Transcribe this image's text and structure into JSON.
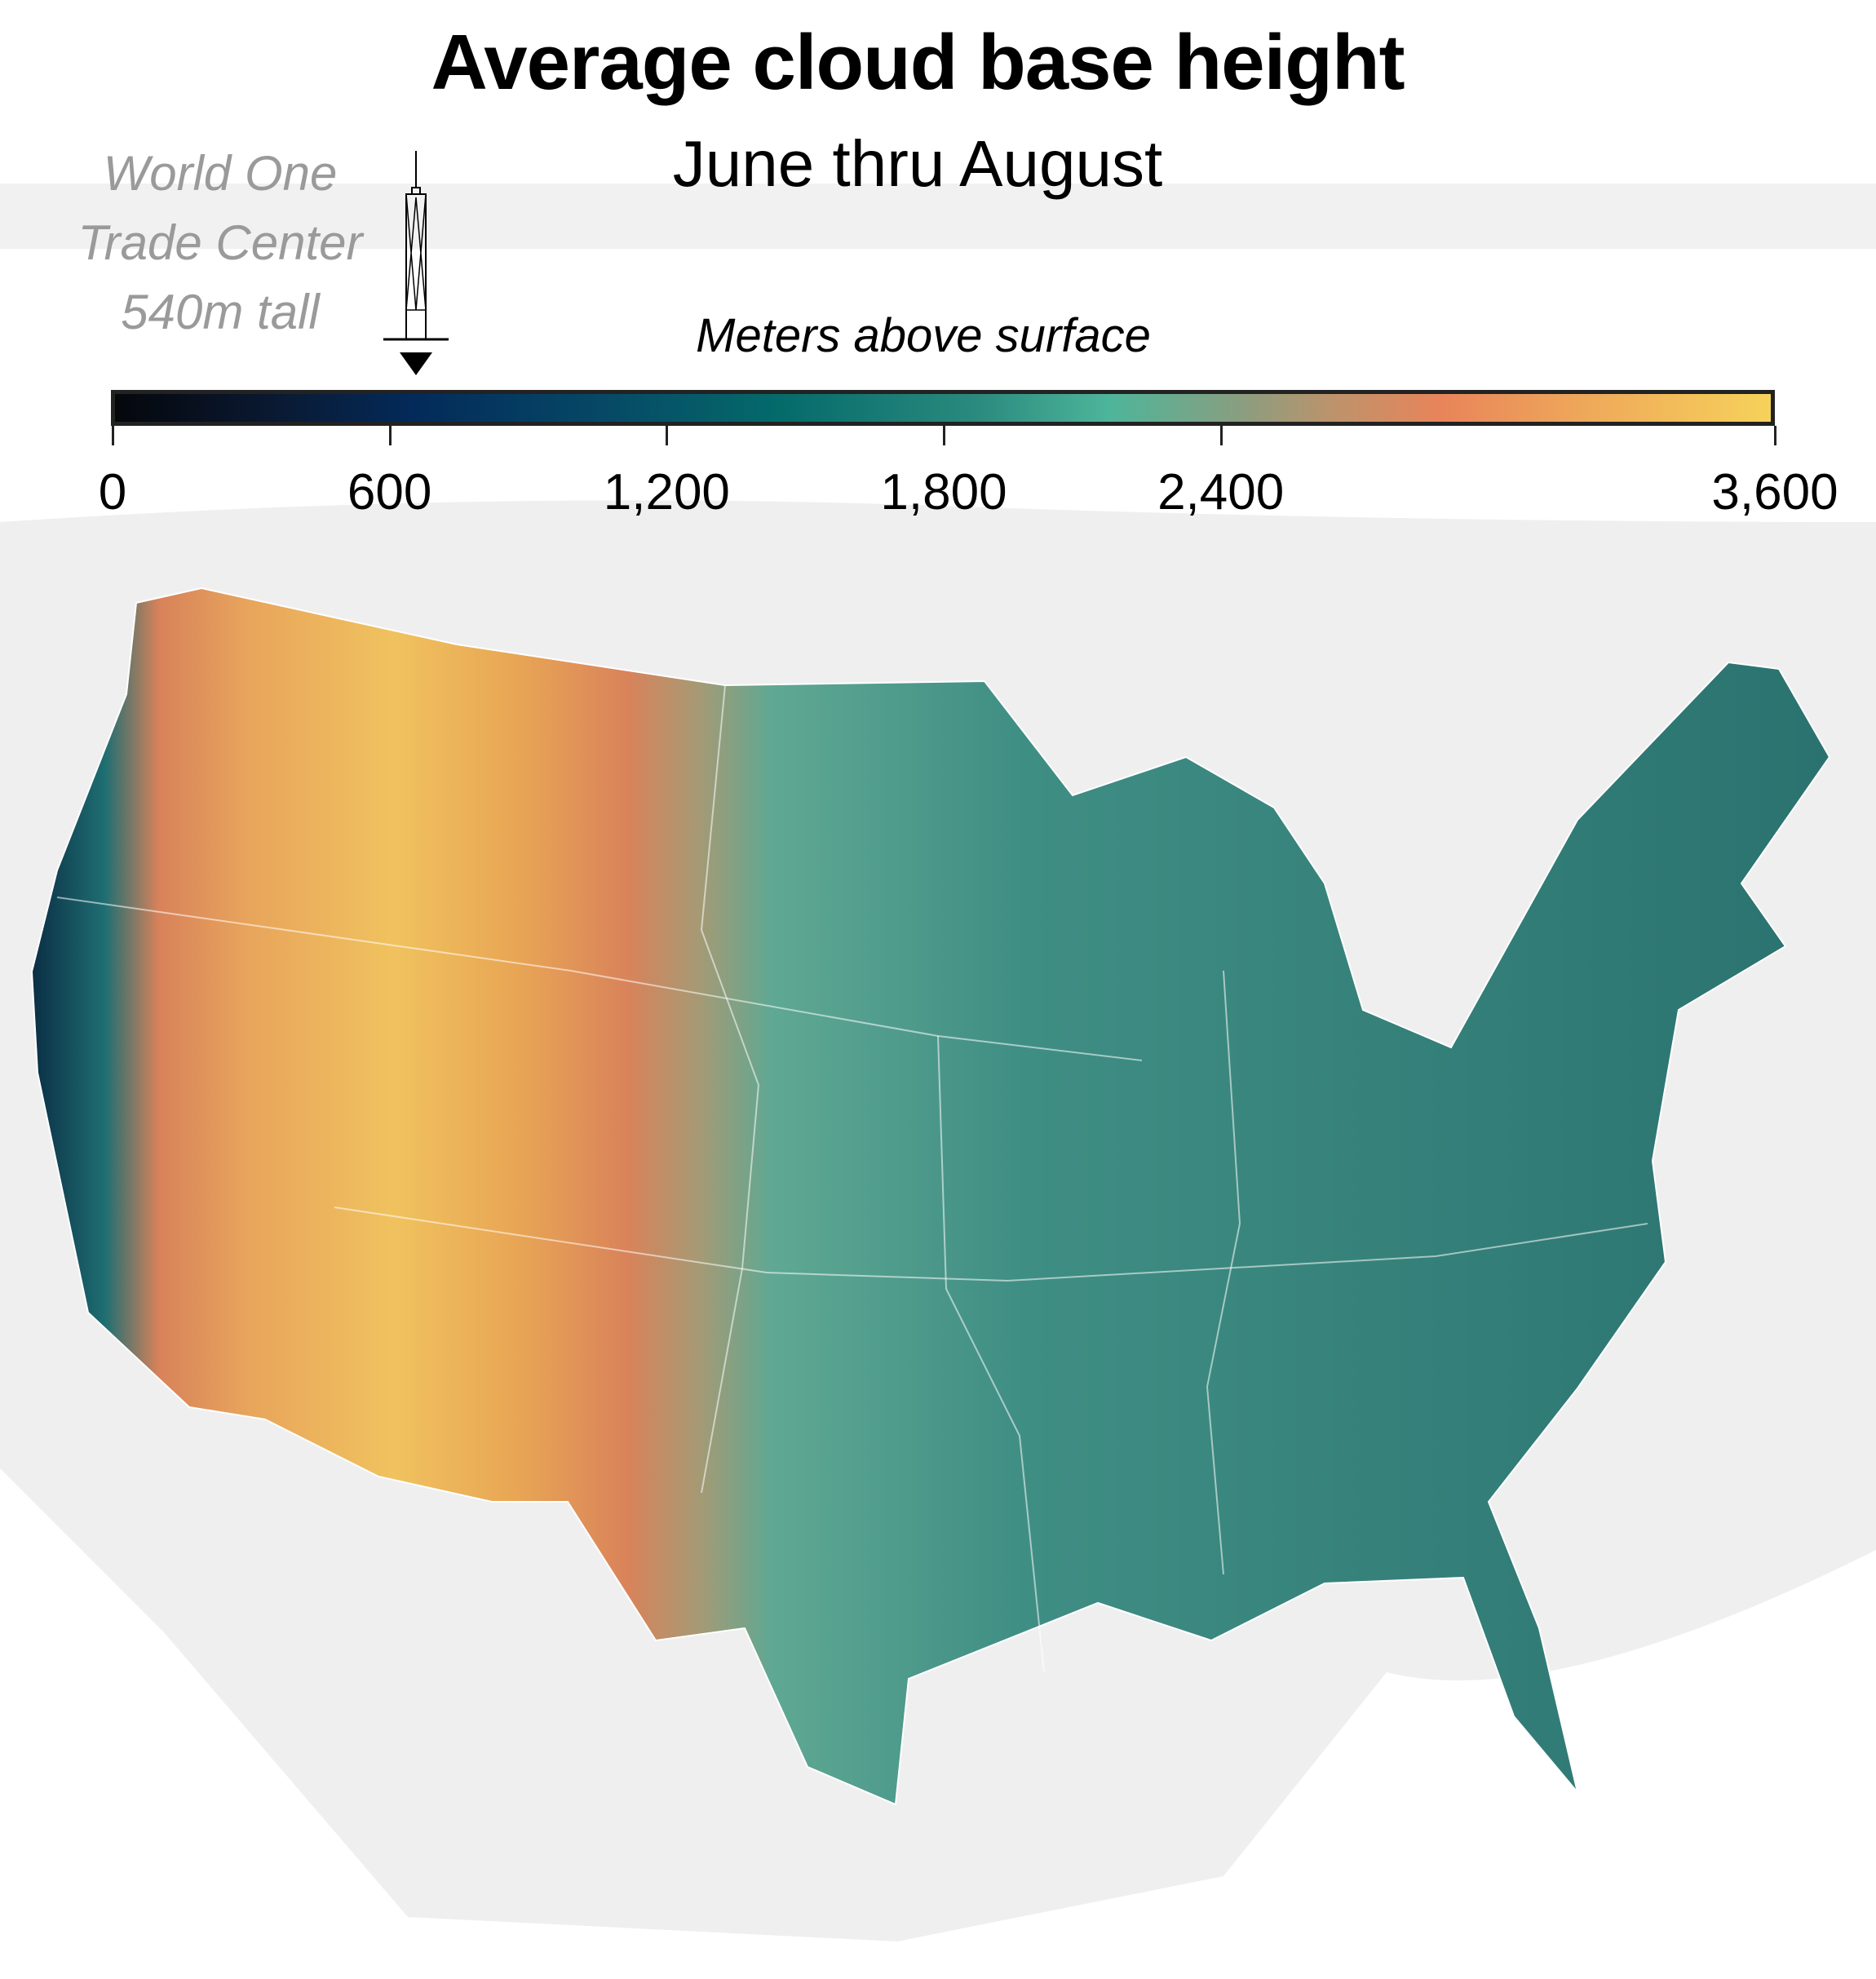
{
  "title": "Average cloud base height",
  "subtitle": "June thru August",
  "legend": {
    "title": "Meters above surface",
    "ticks": [
      "0",
      "600",
      "1,200",
      "1,800",
      "2,400",
      "3,600"
    ],
    "tick_values": [
      0,
      600,
      1200,
      1800,
      2400,
      3600
    ],
    "range": [
      0,
      3600
    ],
    "colors": [
      "#05070c",
      "#032a5a",
      "#046a6a",
      "#4db59a",
      "#e8845a",
      "#f6d25a"
    ]
  },
  "annotation": {
    "lines": [
      "World One",
      "Trade Center",
      "540m tall"
    ],
    "value_m": 540,
    "icon": "skyscraper-icon"
  },
  "map": {
    "region": "Contiguous United States",
    "icon": "us-map"
  }
}
